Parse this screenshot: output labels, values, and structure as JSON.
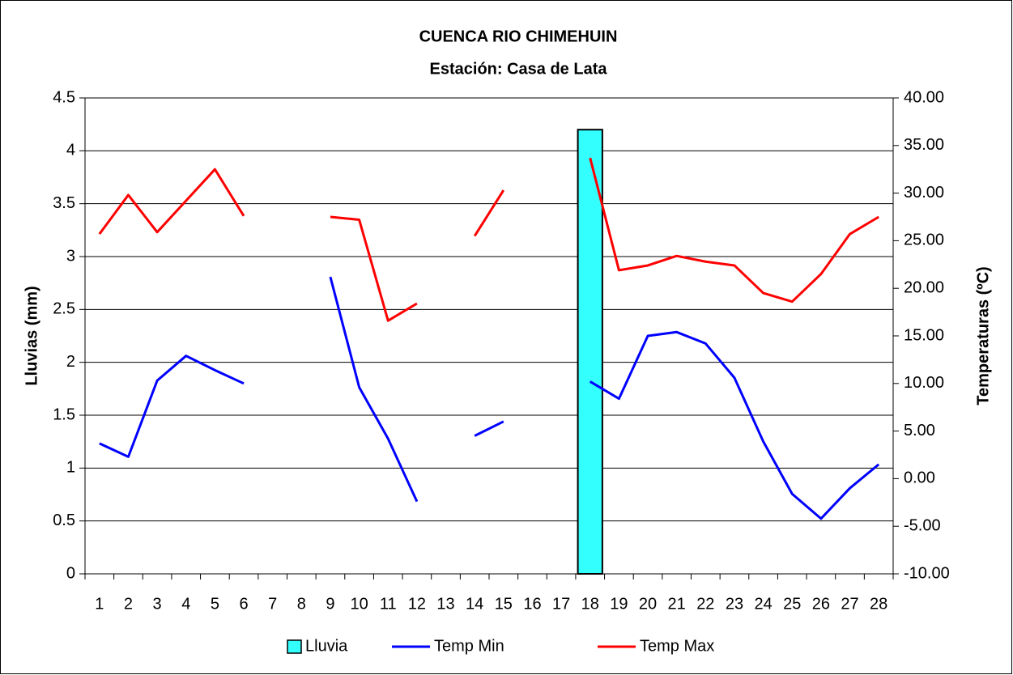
{
  "chart_data": {
    "type": "bar_line",
    "title": "CUENCA RIO CHIMEHUIN",
    "subtitle": "Estación: Casa de Lata",
    "y_label": "Lluvias (mm)",
    "y2_label": "Temperaturas (ºC)",
    "categories": [
      "1",
      "2",
      "3",
      "4",
      "5",
      "6",
      "7",
      "8",
      "9",
      "10",
      "11",
      "12",
      "13",
      "14",
      "15",
      "16",
      "17",
      "18",
      "19",
      "20",
      "21",
      "22",
      "23",
      "24",
      "25",
      "26",
      "27",
      "28"
    ],
    "series": [
      {
        "name": "Lluvia",
        "type": "bar",
        "color": "#33ffff",
        "values": [
          0,
          0,
          0,
          0,
          0,
          0,
          0,
          0,
          0,
          0,
          0,
          0,
          0,
          0,
          0,
          0,
          0,
          4.2,
          0,
          0,
          0,
          0,
          0,
          0,
          0,
          0,
          0,
          0
        ]
      },
      {
        "name": "Temp Min",
        "type": "line",
        "axis": "y2",
        "color": "#0000ff",
        "values": [
          3.7,
          2.3,
          10.3,
          12.9,
          11.4,
          10.0,
          null,
          null,
          21.2,
          9.6,
          4.2,
          -2.4,
          null,
          4.5,
          6.0,
          null,
          null,
          10.2,
          8.4,
          15.0,
          15.4,
          14.2,
          10.6,
          3.9,
          -1.6,
          -4.2,
          -1.0,
          1.5
        ]
      },
      {
        "name": "Temp Max",
        "type": "line",
        "axis": "y2",
        "color": "#ff0000",
        "values": [
          25.7,
          29.8,
          25.9,
          29.2,
          32.5,
          27.6,
          null,
          null,
          27.5,
          27.2,
          16.6,
          18.4,
          null,
          25.5,
          30.3,
          null,
          null,
          33.7,
          21.9,
          22.4,
          23.4,
          22.8,
          22.4,
          19.5,
          18.6,
          21.5,
          25.7,
          27.5
        ]
      }
    ],
    "ylim": [
      0,
      4.5
    ],
    "yticks": [
      0,
      0.5,
      1,
      1.5,
      2,
      2.5,
      3,
      3.5,
      4,
      4.5
    ],
    "y2lim": [
      -10,
      40
    ],
    "y2ticks": [
      {
        "value": -10,
        "label": "-10.00"
      },
      {
        "value": -5,
        "label": "-5.00"
      },
      {
        "value": 0,
        "label": "0.00"
      },
      {
        "value": 5,
        "label": "5.00"
      },
      {
        "value": 10,
        "label": "10.00"
      },
      {
        "value": 15,
        "label": "15.00"
      },
      {
        "value": 20,
        "label": "20.00"
      },
      {
        "value": 25,
        "label": "25.00"
      },
      {
        "value": 30,
        "label": "30.00"
      },
      {
        "value": 35,
        "label": "35.00"
      },
      {
        "value": 40,
        "label": "40.00"
      }
    ],
    "grid": true,
    "legend": "bottom"
  }
}
